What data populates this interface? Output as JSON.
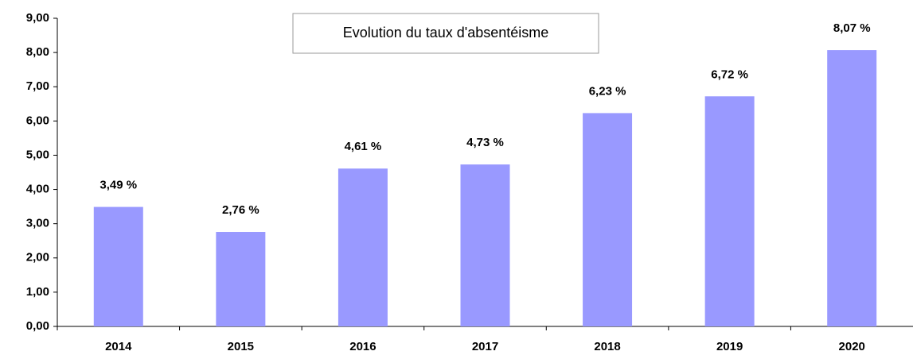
{
  "chart_data": {
    "type": "bar",
    "title": "Evolution du taux d'absentéisme",
    "categories": [
      "2014",
      "2015",
      "2016",
      "2017",
      "2018",
      "2019",
      "2020"
    ],
    "values": [
      3.49,
      2.76,
      4.61,
      4.73,
      6.23,
      6.72,
      8.07
    ],
    "value_labels": [
      "3,49 %",
      "2,76 %",
      "4,61 %",
      "4,73 %",
      "6,23 %",
      "6,72 %",
      "8,07 %"
    ],
    "color": "#9999ff",
    "ylim": [
      0,
      9
    ],
    "yticks": [
      {
        "value": 0,
        "label": "0,00"
      },
      {
        "value": 1,
        "label": "1,00"
      },
      {
        "value": 2,
        "label": "2,00"
      },
      {
        "value": 3,
        "label": "3,00"
      },
      {
        "value": 4,
        "label": "4,00"
      },
      {
        "value": 5,
        "label": "5,00"
      },
      {
        "value": 6,
        "label": "6,00"
      },
      {
        "value": 7,
        "label": "7,00"
      },
      {
        "value": 8,
        "label": "8,00"
      },
      {
        "value": 9,
        "label": "9,00"
      }
    ],
    "grid": false
  }
}
